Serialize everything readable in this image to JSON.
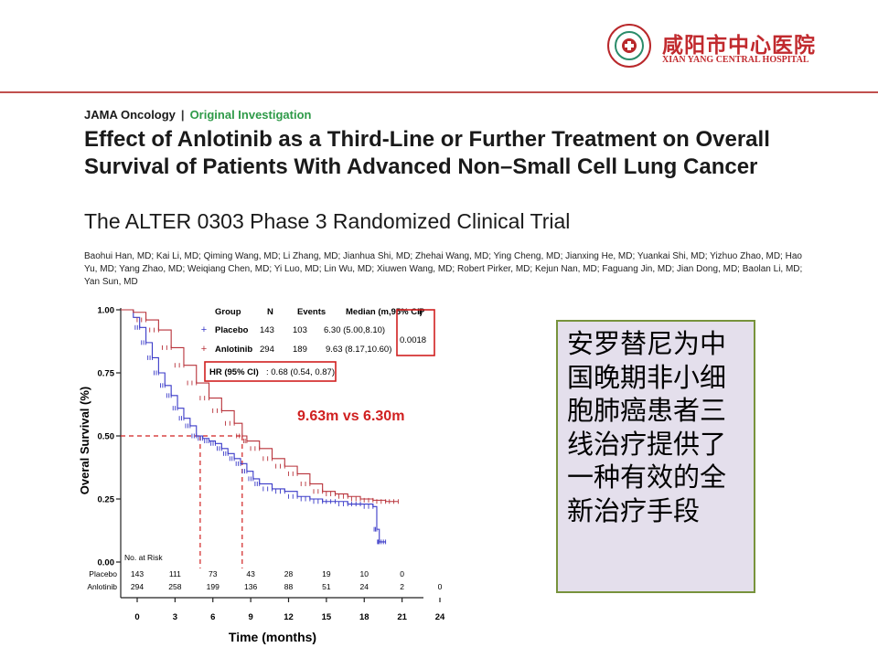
{
  "hospital": {
    "name_cn": "咸阳市中心医院",
    "name_en": "XIAN YANG CENTRAL HOSPITAL",
    "accent": "#c12a2e"
  },
  "journal": {
    "name": "JAMA Oncology",
    "separator": "|",
    "section": "Original Investigation",
    "section_color": "#2e9a48"
  },
  "paper": {
    "title": "Effect of Anlotinib as a Third-Line or Further Treatment on Overall Survival of Patients With Advanced Non–Small Cell Lung Cancer",
    "subtitle": "The ALTER 0303 Phase 3 Randomized Clinical Trial",
    "authors": "Baohui Han, MD; Kai Li, MD; Qiming Wang, MD; Li Zhang, MD; Jianhua Shi, MD; Zhehai Wang, MD; Ying Cheng, MD; Jianxing He, MD; Yuankai Shi, MD; Yizhuo Zhao, MD; Hao Yu, MD; Yang Zhao, MD; Weiqiang Chen, MD; Yi Luo, MD; Lin Wu, MD; Xiuwen Wang, MD; Robert Pirker, MD; Kejun Nan, MD; Faguang Jin, MD; Jian Dong, MD; Baolan Li, MD; Yan Sun, MD"
  },
  "chart_data": {
    "type": "line",
    "xlabel": "Time (months)",
    "ylabel": "Overal Survival (%)",
    "xlim": [
      0,
      24
    ],
    "ylim": [
      0,
      1
    ],
    "x_ticks": [
      "0",
      "3",
      "6",
      "9",
      "12",
      "15",
      "18",
      "21",
      "24"
    ],
    "y_ticks": [
      "0.00",
      "0.25",
      "0.50",
      "0.75",
      "1.00"
    ],
    "legend_header": {
      "group": "Group",
      "n": "N",
      "events": "Events",
      "median": "Median (m,95% CI)",
      "p": "P"
    },
    "series": [
      {
        "name": "Placebo",
        "n": "143",
        "events": "103",
        "median": "6.30 (5.00,8.10)",
        "color": "#3a3ac8",
        "points": [
          [
            0,
            1.0
          ],
          [
            1,
            0.97
          ],
          [
            1.5,
            0.93
          ],
          [
            2,
            0.87
          ],
          [
            2.5,
            0.81
          ],
          [
            3,
            0.75
          ],
          [
            3.5,
            0.7
          ],
          [
            4,
            0.66
          ],
          [
            4.5,
            0.61
          ],
          [
            5,
            0.57
          ],
          [
            5.5,
            0.54
          ],
          [
            6,
            0.5
          ],
          [
            6.5,
            0.49
          ],
          [
            7,
            0.48
          ],
          [
            7.5,
            0.47
          ],
          [
            8,
            0.45
          ],
          [
            8.5,
            0.43
          ],
          [
            9,
            0.41
          ],
          [
            9.5,
            0.39
          ],
          [
            10,
            0.36
          ],
          [
            10.5,
            0.33
          ],
          [
            11,
            0.31
          ],
          [
            12,
            0.29
          ],
          [
            13,
            0.28
          ],
          [
            14,
            0.26
          ],
          [
            15,
            0.25
          ],
          [
            16,
            0.24
          ],
          [
            17,
            0.24
          ],
          [
            18,
            0.23
          ],
          [
            19,
            0.23
          ],
          [
            20,
            0.22
          ],
          [
            20.3,
            0.13
          ],
          [
            20.5,
            0.08
          ],
          [
            21,
            0.08
          ]
        ]
      },
      {
        "name": "Anlotinib",
        "n": "294",
        "events": "189",
        "median": "9.63 (8.17,10.60)",
        "color": "#b8323a",
        "points": [
          [
            0,
            1.0
          ],
          [
            1,
            0.99
          ],
          [
            2,
            0.96
          ],
          [
            3,
            0.92
          ],
          [
            4,
            0.85
          ],
          [
            5,
            0.78
          ],
          [
            6,
            0.71
          ],
          [
            7,
            0.65
          ],
          [
            8,
            0.6
          ],
          [
            9,
            0.55
          ],
          [
            9.63,
            0.5
          ],
          [
            10,
            0.48
          ],
          [
            11,
            0.45
          ],
          [
            12,
            0.41
          ],
          [
            13,
            0.38
          ],
          [
            14,
            0.35
          ],
          [
            15,
            0.31
          ],
          [
            16,
            0.28
          ],
          [
            17,
            0.27
          ],
          [
            18,
            0.26
          ],
          [
            19,
            0.25
          ],
          [
            20,
            0.245
          ],
          [
            21,
            0.24
          ],
          [
            22,
            0.24
          ]
        ]
      }
    ],
    "p_value": "0.0018",
    "hr_label": "HR (95% CI)",
    "hr_value": ": 0.68 (0.54, 0.87)",
    "annotation": "9.63m vs 6.30m",
    "median_lines": [
      6.3,
      9.63
    ],
    "risk_table": {
      "title": "No. at Risk",
      "rows": [
        {
          "label": "Placebo",
          "values": [
            "143",
            "111",
            "73",
            "43",
            "28",
            "19",
            "10",
            "0"
          ]
        },
        {
          "label": "Anlotinib",
          "values": [
            "294",
            "258",
            "199",
            "136",
            "88",
            "51",
            "24",
            "2",
            "0"
          ]
        }
      ]
    }
  },
  "callout": {
    "text": "安罗替尼为中国晚期非小细胞肺癌患者三线治疗提供了一种有效的全新治疗手段",
    "bg": "#e4dfec",
    "border": "#77933c"
  }
}
